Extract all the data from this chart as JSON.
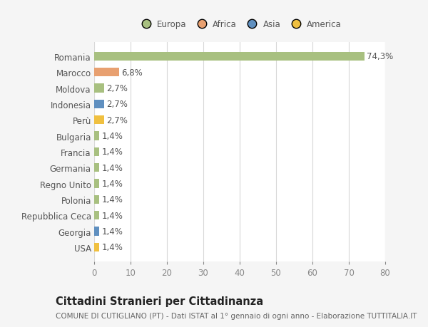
{
  "countries": [
    "Romania",
    "Marocco",
    "Moldova",
    "Indonesia",
    "Perù",
    "Bulgaria",
    "Francia",
    "Germania",
    "Regno Unito",
    "Polonia",
    "Repubblica Ceca",
    "Georgia",
    "USA"
  ],
  "values": [
    74.3,
    6.8,
    2.7,
    2.7,
    2.7,
    1.4,
    1.4,
    1.4,
    1.4,
    1.4,
    1.4,
    1.4,
    1.4
  ],
  "labels": [
    "74,3%",
    "6,8%",
    "2,7%",
    "2,7%",
    "2,7%",
    "1,4%",
    "1,4%",
    "1,4%",
    "1,4%",
    "1,4%",
    "1,4%",
    "1,4%",
    "1,4%"
  ],
  "colors": [
    "#a8c080",
    "#e8a070",
    "#a8c080",
    "#6090c0",
    "#f0c040",
    "#a8c080",
    "#a8c080",
    "#a8c080",
    "#a8c080",
    "#a8c080",
    "#a8c080",
    "#6090c0",
    "#f0c040"
  ],
  "legend_labels": [
    "Europa",
    "Africa",
    "Asia",
    "America"
  ],
  "legend_colors": [
    "#a8c080",
    "#e8a070",
    "#6090c0",
    "#f0c040"
  ],
  "title": "Cittadini Stranieri per Cittadinanza",
  "subtitle": "COMUNE DI CUTIGLIANO (PT) - Dati ISTAT al 1° gennaio di ogni anno - Elaborazione TUTTITALIA.IT",
  "xlim": [
    0,
    80
  ],
  "xticks": [
    0,
    10,
    20,
    30,
    40,
    50,
    60,
    70,
    80
  ],
  "bg_color": "#f5f5f5",
  "plot_bg_color": "#ffffff",
  "grid_color": "#d8d8d8",
  "label_fontsize": 8.5,
  "title_fontsize": 10.5,
  "subtitle_fontsize": 7.5,
  "bar_height": 0.55
}
